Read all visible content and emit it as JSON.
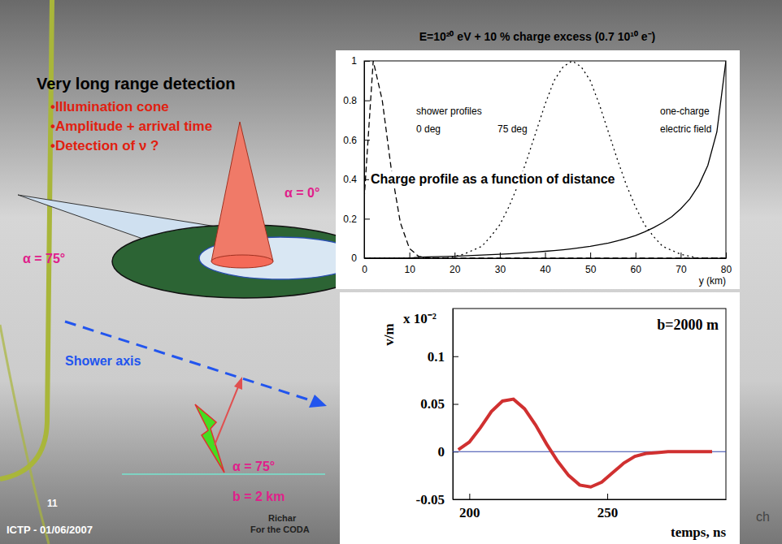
{
  "slide": {
    "heading": "Very long range detection",
    "bullets": [
      "•Illumination cone",
      "•Amplitude + arrival time",
      "•Detection of ν ?"
    ],
    "diagram": {
      "cone_vertical": "α = 0°",
      "cone_inclined": "α = 75°",
      "axis_label": "Shower axis",
      "angle": "α = 75°",
      "impact": "b = 2 km"
    },
    "footer": {
      "page": "11",
      "event": "ICTP - 01/06/2007",
      "author": "Richar",
      "group": "For the CODA",
      "logo_text": "ch"
    }
  },
  "chart_data": [
    {
      "type": "line",
      "title": "E=10²⁰ eV + 10 % charge excess (0.7 10¹⁰ e⁻)",
      "x_label": "y (km)",
      "annotations": [
        "shower profiles",
        "Charge profile as a function of distance"
      ],
      "x": [
        0,
        2,
        4,
        6,
        8,
        10,
        12,
        14,
        16,
        18,
        20,
        22,
        24,
        26,
        28,
        30,
        32,
        34,
        36,
        38,
        40,
        42,
        44,
        46,
        48,
        50,
        52,
        54,
        56,
        58,
        60,
        62,
        64,
        66,
        68,
        70,
        72,
        74,
        76,
        78,
        80
      ],
      "xlim": [
        0,
        80
      ],
      "xticks": [
        0,
        10,
        20,
        30,
        40,
        50,
        60,
        70,
        80
      ],
      "ylim": [
        0,
        1
      ],
      "yticks": [
        0,
        0.2,
        0.4,
        0.6,
        0.8,
        1
      ],
      "grid": false,
      "series": [
        {
          "name": "0 deg",
          "color": "#000000",
          "line_style": "dashed",
          "values": [
            0.3,
            1.0,
            0.8,
            0.45,
            0.18,
            0.05,
            0.01,
            0,
            0,
            0,
            0,
            0,
            0,
            0,
            0,
            0,
            0,
            0,
            0,
            0,
            0,
            0,
            0,
            0,
            0,
            0,
            0,
            0,
            0,
            0,
            0,
            0,
            0,
            0,
            0,
            0,
            0,
            0,
            0,
            0,
            0
          ]
        },
        {
          "name": "75 deg",
          "color": "#000000",
          "line_style": "dotted",
          "values": [
            0,
            0,
            0,
            0,
            0,
            0,
            0,
            0,
            0,
            0,
            0.01,
            0.02,
            0.04,
            0.06,
            0.11,
            0.17,
            0.26,
            0.37,
            0.5,
            0.64,
            0.78,
            0.9,
            0.97,
            1.0,
            0.97,
            0.9,
            0.78,
            0.64,
            0.5,
            0.37,
            0.26,
            0.17,
            0.11,
            0.06,
            0.04,
            0.02,
            0.01,
            0,
            0,
            0,
            0
          ]
        },
        {
          "name": "one-charge electric field",
          "color": "#000000",
          "line_style": "solid",
          "values": [
            0,
            0,
            0,
            0,
            0,
            0,
            0.005,
            0.007,
            0.008,
            0.009,
            0.01,
            0.012,
            0.014,
            0.016,
            0.018,
            0.02,
            0.022,
            0.025,
            0.028,
            0.031,
            0.035,
            0.039,
            0.043,
            0.048,
            0.054,
            0.06,
            0.068,
            0.077,
            0.088,
            0.1,
            0.115,
            0.133,
            0.155,
            0.18,
            0.21,
            0.25,
            0.3,
            0.37,
            0.47,
            0.64,
            1.0
          ]
        }
      ]
    },
    {
      "type": "line",
      "x_label": "temps, ns",
      "y_label": "v/m",
      "annotations": [
        "x 10⁻²",
        "b=2000 m"
      ],
      "x": [
        196,
        200,
        204,
        208,
        212,
        216,
        220,
        224,
        228,
        232,
        236,
        240,
        244,
        248,
        252,
        256,
        260,
        264,
        268,
        272,
        276,
        280,
        284,
        288
      ],
      "xlim": [
        194,
        293
      ],
      "xticks": [
        200,
        250
      ],
      "ylim": [
        -0.05,
        0.15
      ],
      "yticks": [
        -0.05,
        0,
        0.05,
        0.1
      ],
      "grid": false,
      "series": [
        {
          "name": "b=2000 m",
          "color": "#d03030",
          "line_style": "solid",
          "values": [
            0.002,
            0.01,
            0.025,
            0.042,
            0.053,
            0.055,
            0.045,
            0.028,
            0.008,
            -0.01,
            -0.025,
            -0.035,
            -0.037,
            -0.032,
            -0.022,
            -0.012,
            -0.005,
            -0.002,
            -0.001,
            0,
            0,
            0,
            0,
            0
          ]
        }
      ]
    }
  ]
}
